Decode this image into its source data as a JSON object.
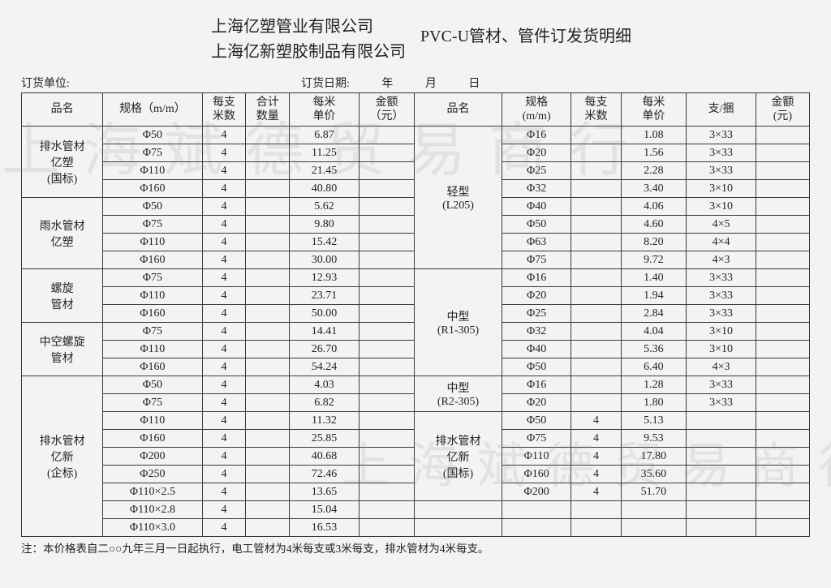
{
  "watermark1": "上海斌德贸易商行",
  "watermark2": "上海斌德贸易商行",
  "company1": "上海亿塑管业有限公司",
  "company2": "上海亿新塑胶制品有限公司",
  "doc_title": "PVC-U管材、管件订发货明细",
  "meta": {
    "order_unit_label": "订货单位:",
    "order_date_label": "订货日期:",
    "y": "年",
    "m": "月",
    "d": "日"
  },
  "headers_left": {
    "name": "品名",
    "spec": "规格（m/m）",
    "mz": "每支\n米数",
    "qty": "合计\n数量",
    "price": "每米\n单价",
    "amount": "金额\n（元）"
  },
  "headers_right": {
    "name": "品名",
    "spec": "规格\n(m/m)",
    "mz": "每支\n米数",
    "price": "每米\n单价",
    "bundle": "支/捆",
    "amount": "金额\n(元)"
  },
  "left_groups": [
    {
      "name": "排水管材\n亿塑\n(国标)",
      "rows": [
        {
          "spec": "Φ50",
          "mz": "4",
          "qty": "",
          "price": "6.87",
          "amt": ""
        },
        {
          "spec": "Φ75",
          "mz": "4",
          "qty": "",
          "price": "11.25",
          "amt": ""
        },
        {
          "spec": "Φ110",
          "mz": "4",
          "qty": "",
          "price": "21.45",
          "amt": ""
        },
        {
          "spec": "Φ160",
          "mz": "4",
          "qty": "",
          "price": "40.80",
          "amt": ""
        }
      ]
    },
    {
      "name": "雨水管材\n亿塑",
      "rows": [
        {
          "spec": "Φ50",
          "mz": "4",
          "qty": "",
          "price": "5.62",
          "amt": ""
        },
        {
          "spec": "Φ75",
          "mz": "4",
          "qty": "",
          "price": "9.80",
          "amt": ""
        },
        {
          "spec": "Φ110",
          "mz": "4",
          "qty": "",
          "price": "15.42",
          "amt": ""
        },
        {
          "spec": "Φ160",
          "mz": "4",
          "qty": "",
          "price": "30.00",
          "amt": ""
        }
      ]
    },
    {
      "name": "螺旋\n管材",
      "rows": [
        {
          "spec": "Φ75",
          "mz": "4",
          "qty": "",
          "price": "12.93",
          "amt": ""
        },
        {
          "spec": "Φ110",
          "mz": "4",
          "qty": "",
          "price": "23.71",
          "amt": ""
        },
        {
          "spec": "Φ160",
          "mz": "4",
          "qty": "",
          "price": "50.00",
          "amt": ""
        }
      ]
    },
    {
      "name": "中空螺旋\n管材",
      "rows": [
        {
          "spec": "Φ75",
          "mz": "4",
          "qty": "",
          "price": "14.41",
          "amt": ""
        },
        {
          "spec": "Φ110",
          "mz": "4",
          "qty": "",
          "price": "26.70",
          "amt": ""
        },
        {
          "spec": "Φ160",
          "mz": "4",
          "qty": "",
          "price": "54.24",
          "amt": ""
        }
      ]
    },
    {
      "name": "排水管材\n亿新\n(企标)",
      "rows": [
        {
          "spec": "Φ50",
          "mz": "4",
          "qty": "",
          "price": "4.03",
          "amt": ""
        },
        {
          "spec": "Φ75",
          "mz": "4",
          "qty": "",
          "price": "6.82",
          "amt": ""
        },
        {
          "spec": "Φ110",
          "mz": "4",
          "qty": "",
          "price": "11.32",
          "amt": ""
        },
        {
          "spec": "Φ160",
          "mz": "4",
          "qty": "",
          "price": "25.85",
          "amt": ""
        },
        {
          "spec": "Φ200",
          "mz": "4",
          "qty": "",
          "price": "40.68",
          "amt": ""
        },
        {
          "spec": "Φ250",
          "mz": "4",
          "qty": "",
          "price": "72.46",
          "amt": ""
        },
        {
          "spec": "Φ110×2.5",
          "mz": "4",
          "qty": "",
          "price": "13.65",
          "amt": ""
        },
        {
          "spec": "Φ110×2.8",
          "mz": "4",
          "qty": "",
          "price": "15.04",
          "amt": ""
        },
        {
          "spec": "Φ110×3.0",
          "mz": "4",
          "qty": "",
          "price": "16.53",
          "amt": ""
        }
      ]
    }
  ],
  "right_groups": [
    {
      "name": "轻型\n(L205)",
      "rows": [
        {
          "spec": "Φ16",
          "mz": "",
          "price": "1.08",
          "bund": "3×33",
          "amt": ""
        },
        {
          "spec": "Φ20",
          "mz": "",
          "price": "1.56",
          "bund": "3×33",
          "amt": ""
        },
        {
          "spec": "Φ25",
          "mz": "",
          "price": "2.28",
          "bund": "3×33",
          "amt": ""
        },
        {
          "spec": "Φ32",
          "mz": "",
          "price": "3.40",
          "bund": "3×10",
          "amt": ""
        },
        {
          "spec": "Φ40",
          "mz": "",
          "price": "4.06",
          "bund": "3×10",
          "amt": ""
        },
        {
          "spec": "Φ50",
          "mz": "",
          "price": "4.60",
          "bund": "4×5",
          "amt": ""
        },
        {
          "spec": "Φ63",
          "mz": "",
          "price": "8.20",
          "bund": "4×4",
          "amt": ""
        },
        {
          "spec": "Φ75",
          "mz": "",
          "price": "9.72",
          "bund": "4×3",
          "amt": ""
        }
      ]
    },
    {
      "name": "中型\n(R1-305)",
      "rows": [
        {
          "spec": "Φ16",
          "mz": "",
          "price": "1.40",
          "bund": "3×33",
          "amt": ""
        },
        {
          "spec": "Φ20",
          "mz": "",
          "price": "1.94",
          "bund": "3×33",
          "amt": ""
        },
        {
          "spec": "Φ25",
          "mz": "",
          "price": "2.84",
          "bund": "3×33",
          "amt": ""
        },
        {
          "spec": "Φ32",
          "mz": "",
          "price": "4.04",
          "bund": "3×10",
          "amt": ""
        },
        {
          "spec": "Φ40",
          "mz": "",
          "price": "5.36",
          "bund": "3×10",
          "amt": ""
        },
        {
          "spec": "Φ50",
          "mz": "",
          "price": "6.40",
          "bund": "4×3",
          "amt": ""
        }
      ]
    },
    {
      "name": "中型\n(R2-305)",
      "rows": [
        {
          "spec": "Φ16",
          "mz": "",
          "price": "1.28",
          "bund": "3×33",
          "amt": ""
        },
        {
          "spec": "Φ20",
          "mz": "",
          "price": "1.80",
          "bund": "3×33",
          "amt": ""
        }
      ]
    },
    {
      "name": "排水管材\n亿新\n(国标)",
      "rows": [
        {
          "spec": "Φ50",
          "mz": "4",
          "price": "5.13",
          "bund": "",
          "amt": ""
        },
        {
          "spec": "Φ75",
          "mz": "4",
          "price": "9.53",
          "bund": "",
          "amt": ""
        },
        {
          "spec": "Φ110",
          "mz": "4",
          "price": "17.80",
          "bund": "",
          "amt": ""
        },
        {
          "spec": "Φ160",
          "mz": "4",
          "price": "35.60",
          "bund": "",
          "amt": ""
        },
        {
          "spec": "Φ200",
          "mz": "4",
          "price": "51.70",
          "bund": "",
          "amt": ""
        }
      ]
    }
  ],
  "note": "注：本价格表自二○○九年三月一日起执行，电工管材为4米每支或3米每支，排水管材为4米每支。",
  "style": {
    "background_color": "#f3f3f2",
    "border_color": "#3a3a3a",
    "text_color": "#222222",
    "watermark_color": "rgba(150,150,150,0.18)",
    "font_family": "SimSun",
    "title_fontsize": 20,
    "cell_fontsize": 14,
    "note_fontsize": 13.5
  }
}
